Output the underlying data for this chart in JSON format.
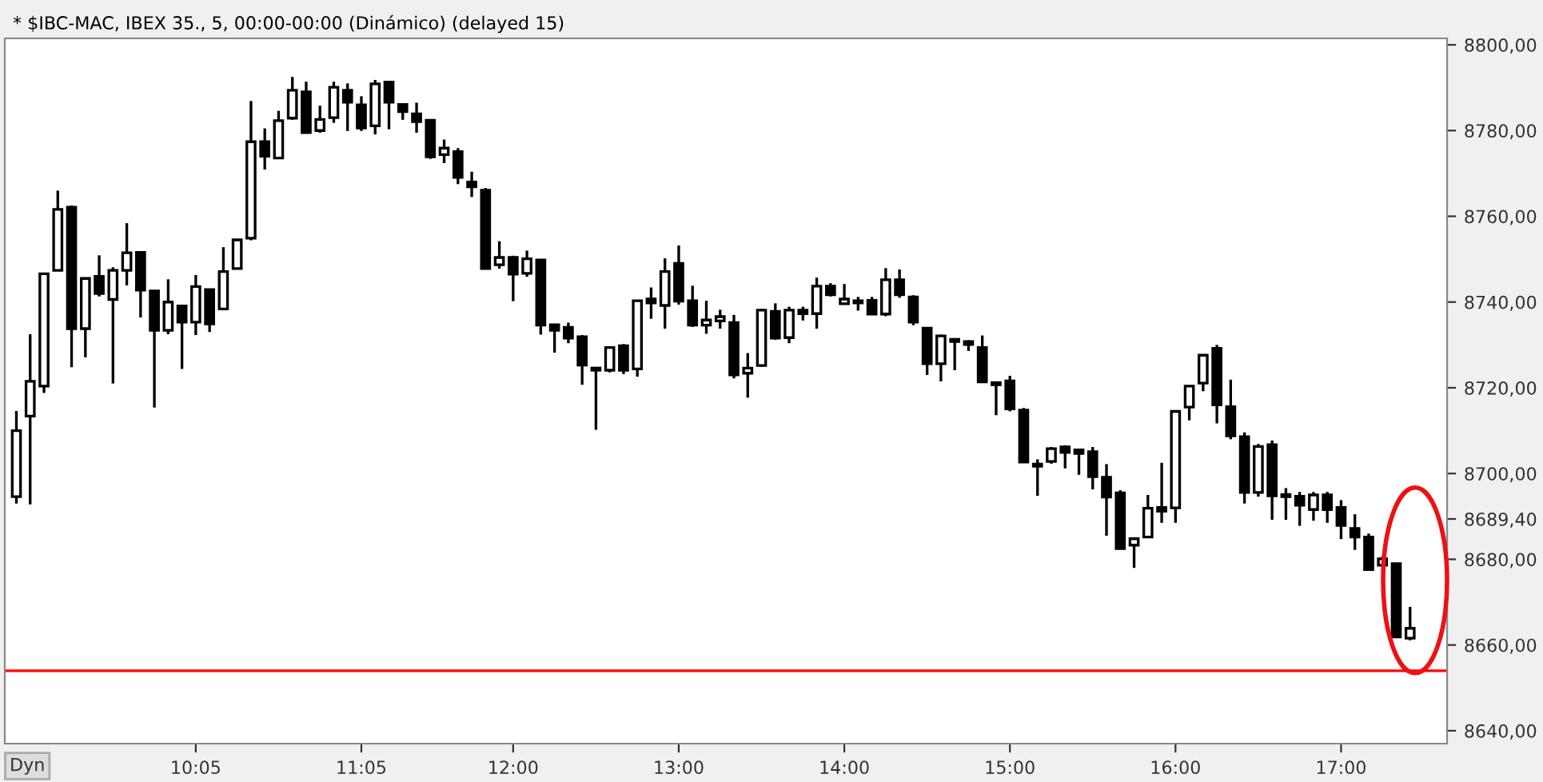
{
  "chart_data": {
    "type": "candlestick",
    "title": "* $IBC-MAC, IBEX 35., 5, 00:00-00:00 (Dinámico) (delayed 15)",
    "annotations": [
      "Dyn"
    ],
    "x": [
      9,
      9.0833,
      9.1667,
      9.25,
      9.3333,
      9.4167,
      9.5,
      9.5833,
      9.6667,
      9.75,
      9.8333,
      9.9167,
      10,
      10.0833,
      10.1667,
      10.25,
      10.3333,
      10.4167,
      10.5,
      10.5833,
      10.6667,
      10.75,
      10.8333,
      10.9167,
      11,
      11.0833,
      11.1667,
      11.25,
      11.3333,
      11.4167,
      11.5,
      11.5833,
      11.6667,
      11.75,
      11.8333,
      11.9167,
      12,
      12.0833,
      12.1667,
      12.25,
      12.3333,
      12.4167,
      12.5,
      12.5833,
      12.6667,
      12.75,
      12.8333,
      12.9167,
      13,
      13.0833,
      13.1667,
      13.25,
      13.3333,
      13.4167,
      13.5,
      13.5833,
      13.6667,
      13.75,
      13.8333,
      13.9167,
      14,
      14.0833,
      14.1667,
      14.25,
      14.3333,
      14.4167,
      14.5,
      14.5833,
      14.6667,
      14.75,
      14.8333,
      14.9167,
      15,
      15.0833,
      15.1667,
      15.25,
      15.3333,
      15.4167,
      15.5,
      15.5833,
      15.6667,
      15.75,
      15.8333,
      15.9167,
      16,
      16.0833,
      16.1667,
      16.25,
      16.3333,
      16.4167,
      16.5,
      16.5833,
      16.6667,
      16.75,
      16.8333,
      16.9167,
      17,
      17.0833,
      17.1667,
      17.25,
      17.3333,
      17.4167
    ],
    "ohlc": [
      [
        8694.6,
        8714.6,
        8693,
        8710
      ],
      [
        8713.4,
        8732.5,
        8692.8,
        8721.5
      ],
      [
        8720.4,
        8746.6,
        8718.8,
        8746.6
      ],
      [
        8747.4,
        8766,
        8747.4,
        8761.6
      ],
      [
        8762.1,
        8762.5,
        8724.8,
        8733.8
      ],
      [
        8733.8,
        8745.5,
        8727.1,
        8745.5
      ],
      [
        8746,
        8750.9,
        8741.3,
        8742
      ],
      [
        8740.6,
        8748.1,
        8721,
        8747.4
      ],
      [
        8747.4,
        8758.4,
        8743.9,
        8751.5
      ],
      [
        8751.6,
        8751.6,
        8736.4,
        8742.8
      ],
      [
        8742.6,
        8742.6,
        8715.4,
        8733.4
      ],
      [
        8733.4,
        8745.3,
        8732.5,
        8740
      ],
      [
        8739.1,
        8739.1,
        8724.4,
        8735.3
      ],
      [
        8735.3,
        8746.3,
        8732.3,
        8743.6
      ],
      [
        8742.9,
        8742.9,
        8733,
        8734.9
      ],
      [
        8738.4,
        8752.8,
        8738.4,
        8747.1
      ],
      [
        8747.8,
        8754.5,
        8747.8,
        8754.5
      ],
      [
        8754.9,
        8786.9,
        8754.4,
        8777.4
      ],
      [
        8777.4,
        8780.5,
        8770.9,
        8774
      ],
      [
        8773.6,
        8784.6,
        8773.6,
        8782.3
      ],
      [
        8782.9,
        8792.5,
        8782.5,
        8789.4
      ],
      [
        8789,
        8791.4,
        8779.5,
        8779.5
      ],
      [
        8780,
        8785.8,
        8779.5,
        8782.6
      ],
      [
        8783,
        8791.4,
        8781.8,
        8790.1
      ],
      [
        8789.4,
        8791,
        8779.9,
        8786.6
      ],
      [
        8786,
        8788,
        8779.9,
        8780.6
      ],
      [
        8781.1,
        8791.8,
        8779.1,
        8790.9
      ],
      [
        8791.3,
        8791.3,
        8780.3,
        8786.6
      ],
      [
        8786.1,
        8786.1,
        8782.5,
        8784.4
      ],
      [
        8783.9,
        8786.5,
        8779.5,
        8782.1
      ],
      [
        8782.4,
        8782.4,
        8773.4,
        8773.9
      ],
      [
        8774.4,
        8777.9,
        8772.4,
        8775.9
      ],
      [
        8775.1,
        8775.9,
        8767.5,
        8769.1
      ],
      [
        8768,
        8770.4,
        8764.5,
        8766.9
      ],
      [
        8766.1,
        8766.6,
        8747.8,
        8747.8
      ],
      [
        8748.7,
        8754.2,
        8747.8,
        8750.4
      ],
      [
        8750.4,
        8750.8,
        8740.2,
        8746.5
      ],
      [
        8746.7,
        8752,
        8745.9,
        8750.1
      ],
      [
        8749.8,
        8749.8,
        8732.4,
        8734.6
      ],
      [
        8734.7,
        8734.7,
        8728.2,
        8733.4
      ],
      [
        8734.1,
        8735.2,
        8730.4,
        8731.6
      ],
      [
        8731.9,
        8732.3,
        8720.7,
        8725.3
      ],
      [
        8724.6,
        8724.6,
        8710.2,
        8724.1
      ],
      [
        8724.1,
        8729.4,
        8723.6,
        8729.4
      ],
      [
        8729.8,
        8730.2,
        8723.2,
        8724.1
      ],
      [
        8724.4,
        8740.3,
        8722.6,
        8740.3
      ],
      [
        8740.7,
        8743.4,
        8736.1,
        8739.8
      ],
      [
        8739.2,
        8750.2,
        8733.8,
        8747.1
      ],
      [
        8749,
        8753.2,
        8739.4,
        8740.2
      ],
      [
        8740.3,
        8743.8,
        8734.2,
        8734.6
      ],
      [
        8734.6,
        8740.3,
        8732.6,
        8735.8
      ],
      [
        8735.6,
        8738.2,
        8733.8,
        8736.6
      ],
      [
        8735.2,
        8737,
        8722.2,
        8723
      ],
      [
        8723.4,
        8728.1,
        8717.7,
        8724.6
      ],
      [
        8725.2,
        8738.4,
        8724.9,
        8738.1
      ],
      [
        8737.8,
        8739.7,
        8731.2,
        8731.6
      ],
      [
        8731.7,
        8738.9,
        8730.4,
        8738.1
      ],
      [
        8738.1,
        8738.9,
        8735.7,
        8737.3
      ],
      [
        8737.3,
        8745.7,
        8733.8,
        8743.7
      ],
      [
        8743.7,
        8744.4,
        8741.3,
        8741.7
      ],
      [
        8739.6,
        8744.2,
        8739.6,
        8740.7
      ],
      [
        8740.3,
        8741.2,
        8738,
        8739.8
      ],
      [
        8740.4,
        8741.2,
        8737.2,
        8737.2
      ],
      [
        8737.2,
        8747.9,
        8736.7,
        8745.2
      ],
      [
        8745.2,
        8747.6,
        8741,
        8741.7
      ],
      [
        8741.2,
        8741.6,
        8734.6,
        8735.3
      ],
      [
        8733.9,
        8733.9,
        8723,
        8725.6
      ],
      [
        8725.6,
        8732.4,
        8721.5,
        8732.1
      ],
      [
        8731.3,
        8731.3,
        8724.1,
        8730.8
      ],
      [
        8730.8,
        8731.1,
        8728.6,
        8730.1
      ],
      [
        8729.4,
        8732.2,
        8721.4,
        8721.4
      ],
      [
        8721.2,
        8721.2,
        8713.6,
        8720.7
      ],
      [
        8721.6,
        8722.8,
        8714.5,
        8715.1
      ],
      [
        8714.8,
        8715.3,
        8702.7,
        8702.7
      ],
      [
        8702.2,
        8703.3,
        8694.8,
        8701.7
      ],
      [
        8702.8,
        8706.2,
        8702.3,
        8705.8
      ],
      [
        8706.2,
        8706.6,
        8701.2,
        8704.9
      ],
      [
        8705.5,
        8705.8,
        8699.7,
        8704.7
      ],
      [
        8705.1,
        8706.2,
        8696.3,
        8699.3
      ],
      [
        8699.1,
        8702.2,
        8685.5,
        8694.5
      ],
      [
        8695.5,
        8696.1,
        8682.5,
        8682.5
      ],
      [
        8683.3,
        8684.8,
        8678,
        8684.8
      ],
      [
        8685.2,
        8695,
        8685.2,
        8691.9
      ],
      [
        8692.1,
        8702.5,
        8688.5,
        8691.2
      ],
      [
        8692,
        8714.5,
        8688.5,
        8714.5
      ],
      [
        8715.5,
        8720.4,
        8712.4,
        8720.4
      ],
      [
        8721.1,
        8727.6,
        8719.2,
        8727.6
      ],
      [
        8729.2,
        8730,
        8711.7,
        8716
      ],
      [
        8715.6,
        8721.9,
        8708,
        8708.8
      ],
      [
        8708.6,
        8709.6,
        8693,
        8695.6
      ],
      [
        8695.6,
        8706.9,
        8694.6,
        8706.3
      ],
      [
        8706.7,
        8707.7,
        8689.2,
        8694.8
      ],
      [
        8695.1,
        8696.6,
        8689.2,
        8694.6
      ],
      [
        8694.7,
        8695.7,
        8687.8,
        8692.6
      ],
      [
        8691.6,
        8695.7,
        8689,
        8695
      ],
      [
        8695,
        8695.7,
        8688.5,
        8691.6
      ],
      [
        8692.1,
        8693.8,
        8684.7,
        8687.9
      ],
      [
        8687.2,
        8690.5,
        8682.2,
        8685.2
      ],
      [
        8685.2,
        8686,
        8677.6,
        8677.6
      ],
      [
        8678.6,
        8680.7,
        8678.3,
        8680.1
      ],
      [
        8679,
        8679,
        8661.9,
        8661.9
      ],
      [
        8661.6,
        8668.9,
        8661.1,
        8663.9
      ]
    ],
    "color": "#000000",
    "xlim": [
      8.93,
      17.64
    ],
    "xticks": [
      {
        "value": 10.0833,
        "label": "10:05"
      },
      {
        "value": 11.0833,
        "label": "11:05"
      },
      {
        "value": 12,
        "label": "12:00"
      },
      {
        "value": 13,
        "label": "13:00"
      },
      {
        "value": 14,
        "label": "14:00"
      },
      {
        "value": 15,
        "label": "15:00"
      },
      {
        "value": 16,
        "label": "16:00"
      },
      {
        "value": 17,
        "label": "17:00"
      }
    ],
    "ylim": [
      8637,
      8801.5
    ],
    "yticks": [
      {
        "value": 8640,
        "label": "8640,00"
      },
      {
        "value": 8660,
        "label": "8660,00"
      },
      {
        "value": 8680,
        "label": "8680,00"
      },
      {
        "value": 8689.4,
        "label": "8689,40"
      },
      {
        "value": 8700,
        "label": "8700,00"
      },
      {
        "value": 8720,
        "label": "8720,00"
      },
      {
        "value": 8740,
        "label": "8740,00"
      },
      {
        "value": 8760,
        "label": "8760,00"
      },
      {
        "value": 8780,
        "label": "8780,00"
      },
      {
        "value": 8800,
        "label": "8800,00"
      }
    ],
    "ref_lines": [
      {
        "axis": "y",
        "value": 8654,
        "color": "#ff0000"
      }
    ],
    "grid": false
  }
}
